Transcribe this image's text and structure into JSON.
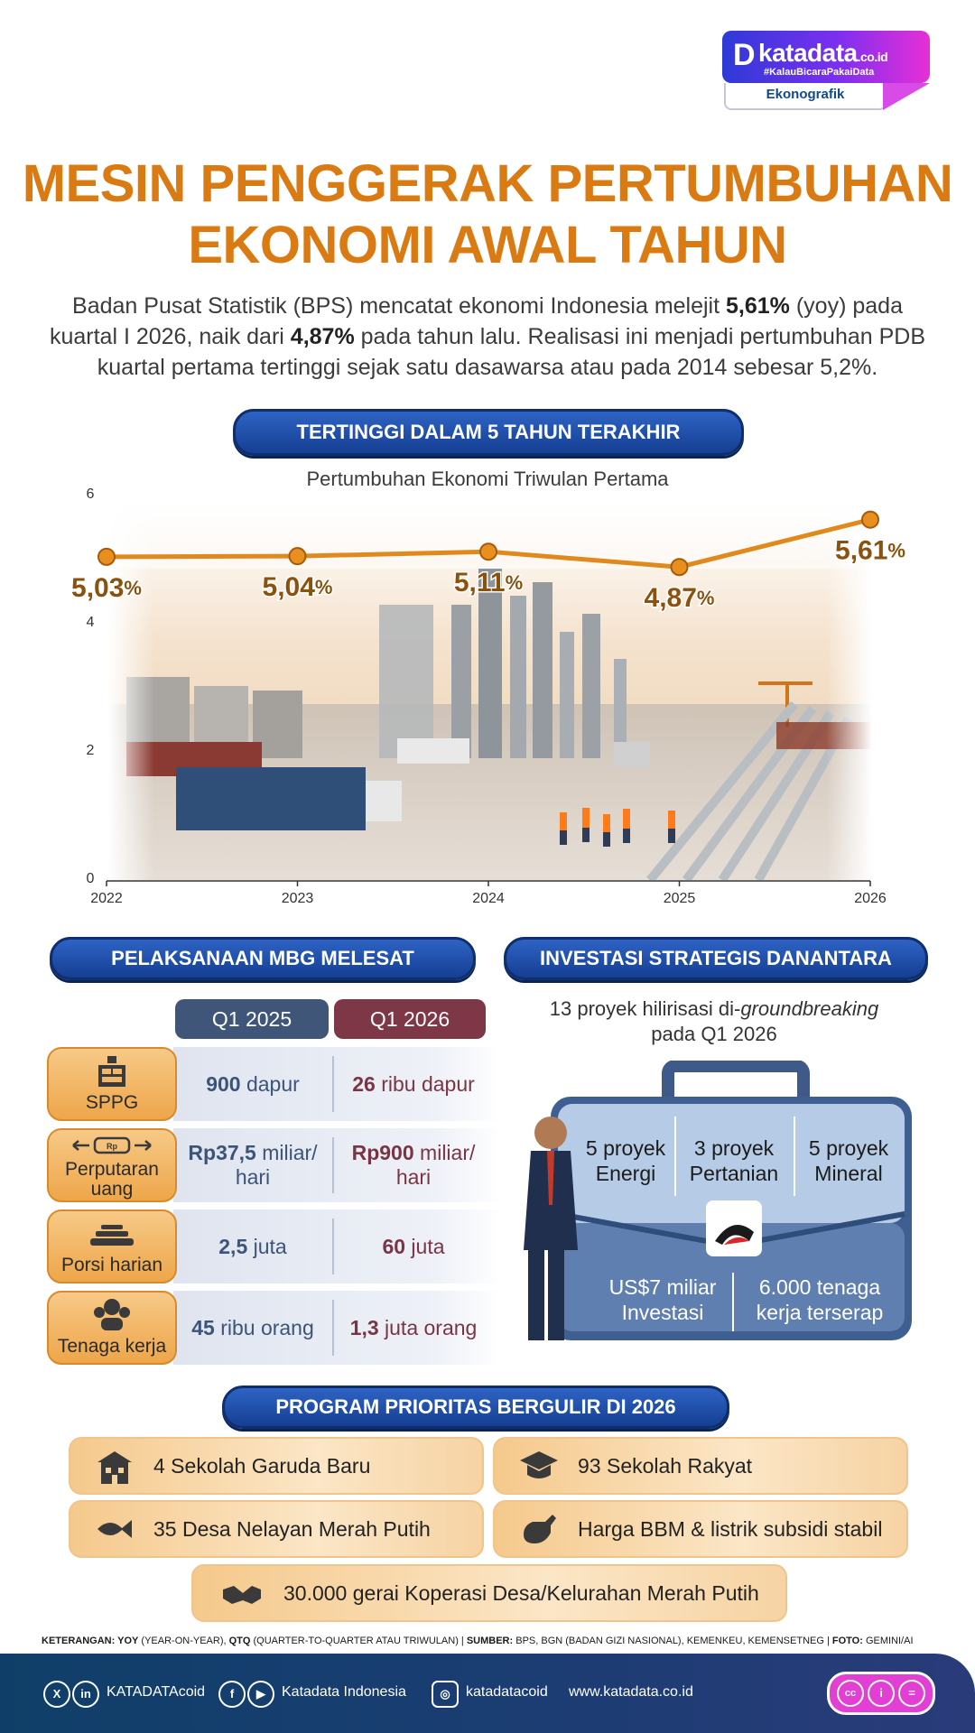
{
  "brand": {
    "mark": "D",
    "name": "katadata",
    "suffix": ".co.id",
    "tagline": "#KalauBicaraPakaiData",
    "section": "Ekonografik"
  },
  "title": {
    "line1": "MESIN PENGGERAK PERTUMBUHAN",
    "line2": "EKONOMI AWAL TAHUN"
  },
  "intro": {
    "p1": "Badan Pusat Statistik (BPS) mencatat ekonomi Indonesia melejit ",
    "b1": "5,61%",
    "p2": " (yoy) pada kuartal I 2026, naik dari ",
    "b2": "4,87%",
    "p3": " pada tahun lalu. Realisasi ini menjadi pertumbuhan PDB kuartal pertama tertinggi sejak satu dasawarsa atau pada 2014 sebesar 5,2%."
  },
  "section_chart": "TERTINGGI DALAM 5 TAHUN TERAKHIR",
  "chart_data": {
    "type": "line",
    "title": "Pertumbuhan Ekonomi Triwulan Pertama",
    "x": [
      "2022",
      "2023",
      "2024",
      "2025",
      "2026"
    ],
    "series": [
      {
        "values": [
          5.03,
          5.04,
          5.11,
          4.87,
          5.61
        ]
      }
    ],
    "value_labels": [
      "5,03",
      "5,04",
      "5,11",
      "4,87",
      "5,61"
    ],
    "value_unit": "%",
    "yticks": [
      "0",
      "2",
      "4",
      "6"
    ],
    "ylim": [
      0,
      6
    ],
    "line_color": "#e08a1e",
    "grid": false
  },
  "mbg": {
    "title": "PELAKSANAAN MBG MELESAT",
    "col1": "Q1 2025",
    "col2": "Q1 2026",
    "rows": [
      {
        "label": "SPPG",
        "v1": "900",
        "u1": " dapur",
        "v2": "26",
        "u2": " ribu dapur"
      },
      {
        "label": "Perputaran uang",
        "v1": "Rp37,5",
        "u1": " miliar/ hari",
        "v2": "Rp900",
        "u2": " miliar/ hari"
      },
      {
        "label": "Porsi harian",
        "v1": "2,5",
        "u1": " juta",
        "v2": "60",
        "u2": " juta"
      },
      {
        "label": "Tenaga kerja",
        "v1": "45",
        "u1": " ribu orang",
        "v2": "1,3",
        "u2": " juta orang"
      }
    ]
  },
  "danantara": {
    "title": "INVESTASI STRATEGIS DANANTARA",
    "sub1": "13 proyek hilirisasi di-",
    "sub1_em": "groundbreaking",
    "sub2": "pada Q1 2026",
    "p1": "5 proyek Energi",
    "p2": "3 proyek Pertanian",
    "p3": "5 proyek Mineral",
    "s1": "US$7 miliar Investasi",
    "s2": "6.000 tenaga kerja terserap"
  },
  "program": {
    "title": "PROGRAM PRIORITAS BERGULIR DI 2026",
    "items": [
      {
        "text": "4 Sekolah Garuda Baru",
        "icon": "school-building-icon"
      },
      {
        "text": "93 Sekolah Rakyat",
        "icon": "graduation-cap-icon"
      },
      {
        "text": "35 Desa Nelayan Merah Putih",
        "icon": "fish-icon"
      },
      {
        "text": "Harga BBM & listrik subsidi stabil",
        "icon": "fuel-nozzle-icon"
      },
      {
        "text": "30.000 gerai Koperasi Desa/Kelurahan Merah Putih",
        "icon": "handshake-icon"
      }
    ]
  },
  "note": {
    "k1": "KETERANGAN: YOY",
    "t1": " (YEAR-ON-YEAR), ",
    "k2": "QTQ",
    "t2": " (QUARTER-TO-QUARTER ATAU TRIWULAN) | ",
    "k3": "SUMBER:",
    "t3": " BPS, BGN (BADAN GIZI NASIONAL), KEMENKEU, KEMENSETNEG | ",
    "k4": "FOTO:",
    "t4": " GEMINI/AI"
  },
  "footer": {
    "x_handle": "KATADATAcoid",
    "fb_name": "Katadata Indonesia",
    "ig_handle": "katadatacoid",
    "website": "www.katadata.co.id",
    "license": [
      "cc-icon",
      "by-icon",
      "nd-icon"
    ]
  }
}
